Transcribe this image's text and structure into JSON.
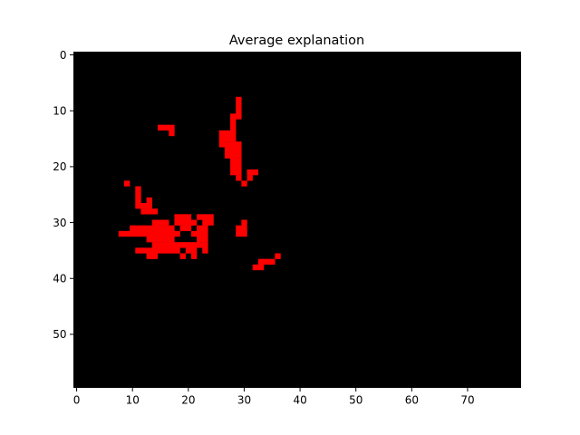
{
  "chart_data": {
    "type": "heatmap",
    "title": "Average explanation",
    "xlabel": "",
    "ylabel": "",
    "grid_width": 80,
    "grid_height": 60,
    "x_ticks": [
      0,
      10,
      20,
      30,
      40,
      50,
      60,
      70
    ],
    "y_ticks": [
      0,
      10,
      20,
      30,
      40,
      50
    ],
    "y_axis_inverted": true,
    "grid": false,
    "background_color": "#000000",
    "mask_color": "#ff0000",
    "mask_rows": [
      {
        "y": 8,
        "runs": [
          [
            29,
            29
          ]
        ]
      },
      {
        "y": 9,
        "runs": [
          [
            29,
            29
          ]
        ]
      },
      {
        "y": 10,
        "runs": [
          [
            29,
            29
          ]
        ]
      },
      {
        "y": 11,
        "runs": [
          [
            28,
            29
          ]
        ]
      },
      {
        "y": 12,
        "runs": [
          [
            28,
            28
          ]
        ]
      },
      {
        "y": 13,
        "runs": [
          [
            15,
            17
          ],
          [
            28,
            28
          ]
        ]
      },
      {
        "y": 14,
        "runs": [
          [
            17,
            17
          ],
          [
            26,
            28
          ]
        ]
      },
      {
        "y": 15,
        "runs": [
          [
            26,
            28
          ]
        ]
      },
      {
        "y": 16,
        "runs": [
          [
            26,
            29
          ]
        ]
      },
      {
        "y": 17,
        "runs": [
          [
            27,
            29
          ]
        ]
      },
      {
        "y": 18,
        "runs": [
          [
            27,
            29
          ]
        ]
      },
      {
        "y": 19,
        "runs": [
          [
            28,
            29
          ]
        ]
      },
      {
        "y": 20,
        "runs": [
          [
            28,
            29
          ]
        ]
      },
      {
        "y": 21,
        "runs": [
          [
            28,
            29
          ],
          [
            31,
            32
          ]
        ]
      },
      {
        "y": 22,
        "runs": [
          [
            29,
            29
          ],
          [
            31,
            31
          ]
        ]
      },
      {
        "y": 23,
        "runs": [
          [
            9,
            9
          ],
          [
            30,
            30
          ]
        ]
      },
      {
        "y": 24,
        "runs": [
          [
            11,
            11
          ]
        ]
      },
      {
        "y": 25,
        "runs": [
          [
            11,
            11
          ]
        ]
      },
      {
        "y": 26,
        "runs": [
          [
            11,
            11
          ],
          [
            13,
            13
          ]
        ]
      },
      {
        "y": 27,
        "runs": [
          [
            11,
            13
          ]
        ]
      },
      {
        "y": 28,
        "runs": [
          [
            12,
            14
          ]
        ]
      },
      {
        "y": 29,
        "runs": [
          [
            18,
            20
          ],
          [
            22,
            24
          ]
        ]
      },
      {
        "y": 30,
        "runs": [
          [
            14,
            16
          ],
          [
            18,
            21
          ],
          [
            23,
            24
          ],
          [
            30,
            30
          ]
        ]
      },
      {
        "y": 31,
        "runs": [
          [
            10,
            17
          ],
          [
            19,
            20
          ],
          [
            22,
            23
          ],
          [
            29,
            30
          ]
        ]
      },
      {
        "y": 32,
        "runs": [
          [
            8,
            18
          ],
          [
            21,
            23
          ],
          [
            29,
            30
          ]
        ]
      },
      {
        "y": 33,
        "runs": [
          [
            13,
            17
          ],
          [
            22,
            23
          ]
        ]
      },
      {
        "y": 34,
        "runs": [
          [
            14,
            17
          ],
          [
            18,
            23
          ]
        ]
      },
      {
        "y": 35,
        "runs": [
          [
            11,
            18
          ],
          [
            20,
            21
          ],
          [
            23,
            23
          ]
        ]
      },
      {
        "y": 36,
        "runs": [
          [
            13,
            14
          ],
          [
            19,
            19
          ],
          [
            21,
            21
          ],
          [
            36,
            36
          ]
        ]
      },
      {
        "y": 37,
        "runs": [
          [
            33,
            35
          ]
        ]
      },
      {
        "y": 38,
        "runs": [
          [
            32,
            33
          ]
        ]
      }
    ]
  }
}
